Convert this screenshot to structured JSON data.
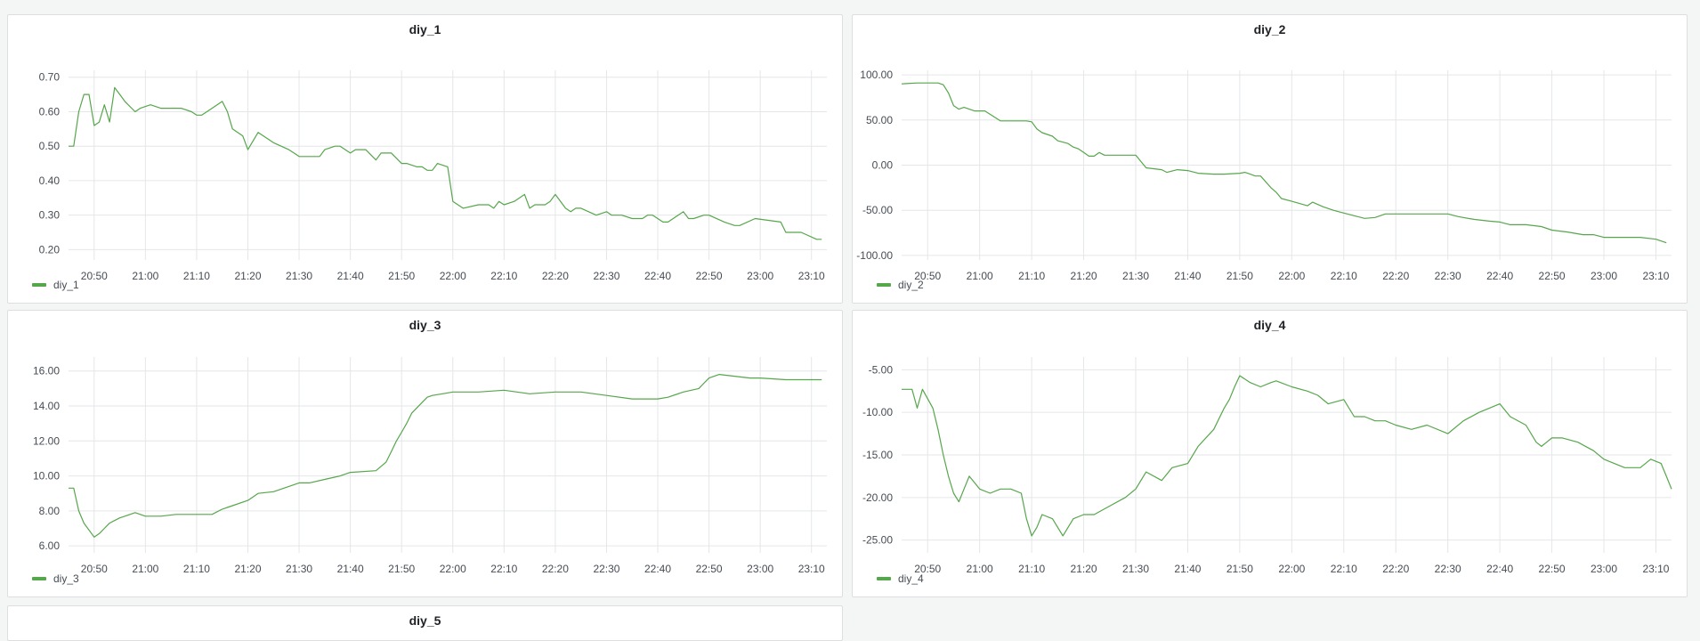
{
  "colors": {
    "series": "#56a64b",
    "grid": "#e4e6e9",
    "text": "#464c54"
  },
  "bottom_panel": {
    "title": "diy_5"
  },
  "chart_data": [
    {
      "type": "line",
      "title": "diy_1",
      "xlabel": "",
      "ylabel": "",
      "legend": "bottom-left",
      "grid": true,
      "xlim": [
        "20:45",
        "23:13"
      ],
      "ylim": [
        0.17,
        0.72
      ],
      "xticks": [
        "20:50",
        "21:00",
        "21:10",
        "21:20",
        "21:30",
        "21:40",
        "21:50",
        "22:00",
        "22:10",
        "22:20",
        "22:30",
        "22:40",
        "22:50",
        "23:00",
        "23:10"
      ],
      "yticks": [
        0.2,
        0.3,
        0.4,
        0.5,
        0.6,
        0.7
      ],
      "ytick_labels": [
        "0.20",
        "0.30",
        "0.40",
        "0.50",
        "0.60",
        "0.70"
      ],
      "series": [
        {
          "name": "diy_1",
          "x": [
            "20:45",
            "20:46",
            "20:47",
            "20:48",
            "20:49",
            "20:50",
            "20:51",
            "20:52",
            "20:53",
            "20:54",
            "20:55",
            "20:56",
            "20:58",
            "20:59",
            "21:01",
            "21:03",
            "21:05",
            "21:07",
            "21:09",
            "21:10",
            "21:11",
            "21:12",
            "21:13",
            "21:15",
            "21:16",
            "21:17",
            "21:18",
            "21:19",
            "21:20",
            "21:22",
            "21:25",
            "21:28",
            "21:29",
            "21:30",
            "21:32",
            "21:34",
            "21:35",
            "21:37",
            "21:38",
            "21:40",
            "21:41",
            "21:43",
            "21:45",
            "21:46",
            "21:48",
            "21:50",
            "21:51",
            "21:53",
            "21:54",
            "21:55",
            "21:56",
            "21:57",
            "21:59",
            "22:00",
            "22:02",
            "22:05",
            "22:07",
            "22:08",
            "22:09",
            "22:10",
            "22:12",
            "22:14",
            "22:15",
            "22:16",
            "22:18",
            "22:19",
            "22:20",
            "22:22",
            "22:23",
            "22:24",
            "22:25",
            "22:28",
            "22:30",
            "22:31",
            "22:33",
            "22:35",
            "22:37",
            "22:38",
            "22:39",
            "22:41",
            "22:42",
            "22:43",
            "22:45",
            "22:46",
            "22:47",
            "22:49",
            "22:50",
            "22:53",
            "22:55",
            "22:56",
            "22:59",
            "23:04",
            "23:05",
            "23:06",
            "23:08",
            "23:11",
            "23:12"
          ],
          "y": [
            0.5,
            0.5,
            0.6,
            0.65,
            0.65,
            0.56,
            0.57,
            0.62,
            0.57,
            0.67,
            0.65,
            0.63,
            0.6,
            0.61,
            0.62,
            0.61,
            0.61,
            0.61,
            0.6,
            0.59,
            0.59,
            0.6,
            0.61,
            0.63,
            0.6,
            0.55,
            0.54,
            0.53,
            0.49,
            0.54,
            0.51,
            0.49,
            0.48,
            0.47,
            0.47,
            0.47,
            0.49,
            0.5,
            0.5,
            0.48,
            0.49,
            0.49,
            0.46,
            0.48,
            0.48,
            0.45,
            0.45,
            0.44,
            0.44,
            0.43,
            0.43,
            0.45,
            0.44,
            0.34,
            0.32,
            0.33,
            0.33,
            0.32,
            0.34,
            0.33,
            0.34,
            0.36,
            0.32,
            0.33,
            0.33,
            0.34,
            0.36,
            0.32,
            0.31,
            0.32,
            0.32,
            0.3,
            0.31,
            0.3,
            0.3,
            0.29,
            0.29,
            0.3,
            0.3,
            0.28,
            0.28,
            0.29,
            0.31,
            0.29,
            0.29,
            0.3,
            0.3,
            0.28,
            0.27,
            0.27,
            0.29,
            0.28,
            0.25,
            0.25,
            0.25,
            0.23,
            0.23
          ]
        }
      ]
    },
    {
      "type": "line",
      "title": "diy_2",
      "xlabel": "",
      "ylabel": "",
      "legend": "bottom-left",
      "grid": true,
      "xlim": [
        "20:45",
        "23:13"
      ],
      "ylim": [
        -105,
        105
      ],
      "xticks": [
        "20:50",
        "21:00",
        "21:10",
        "21:20",
        "21:30",
        "21:40",
        "21:50",
        "22:00",
        "22:10",
        "22:20",
        "22:30",
        "22:40",
        "22:50",
        "23:00",
        "23:10"
      ],
      "yticks": [
        -100,
        -50,
        0,
        50,
        100
      ],
      "ytick_labels": [
        "-100.00",
        "-50.00",
        "0.00",
        "50.00",
        "100.00"
      ],
      "series": [
        {
          "name": "diy_2",
          "x": [
            "20:45",
            "20:48",
            "20:52",
            "20:53",
            "20:54",
            "20:55",
            "20:56",
            "20:57",
            "20:59",
            "21:01",
            "21:04",
            "21:09",
            "21:10",
            "21:11",
            "21:12",
            "21:14",
            "21:15",
            "21:17",
            "21:18",
            "21:19",
            "21:20",
            "21:21",
            "21:22",
            "21:23",
            "21:24",
            "21:30",
            "21:32",
            "21:35",
            "21:36",
            "21:38",
            "21:40",
            "21:42",
            "21:45",
            "21:47",
            "21:50",
            "21:51",
            "21:52",
            "21:53",
            "21:54",
            "21:56",
            "21:57",
            "21:58",
            "22:00",
            "22:03",
            "22:04",
            "22:06",
            "22:08",
            "22:10",
            "22:12",
            "22:14",
            "22:16",
            "22:18",
            "22:20",
            "22:24",
            "22:26",
            "22:30",
            "22:32",
            "22:35",
            "22:38",
            "22:40",
            "22:42",
            "22:45",
            "22:48",
            "22:50",
            "22:53",
            "22:56",
            "22:58",
            "23:00",
            "23:05",
            "23:07",
            "23:10",
            "23:12"
          ],
          "y": [
            90,
            91,
            91,
            89,
            80,
            66,
            62,
            64,
            60,
            60,
            49,
            49,
            48,
            40,
            36,
            32,
            27,
            24,
            20,
            18,
            14,
            10,
            10,
            14,
            11,
            11,
            -3,
            -5,
            -8,
            -5,
            -6,
            -9,
            -10,
            -10,
            -9,
            -8,
            -10,
            -12,
            -12,
            -25,
            -30,
            -37,
            -40,
            -45,
            -41,
            -46,
            -50,
            -53,
            -56,
            -59,
            -58,
            -54,
            -54,
            -54,
            -54,
            -54,
            -57,
            -60,
            -62,
            -63,
            -66,
            -66,
            -68,
            -72,
            -74,
            -77,
            -77,
            -80,
            -80,
            -80,
            -82,
            -86
          ]
        }
      ]
    },
    {
      "type": "line",
      "title": "diy_3",
      "xlabel": "",
      "ylabel": "",
      "legend": "bottom-left",
      "grid": true,
      "xlim": [
        "20:45",
        "23:13"
      ],
      "ylim": [
        5.6,
        16.8
      ],
      "xticks": [
        "20:50",
        "21:00",
        "21:10",
        "21:20",
        "21:30",
        "21:40",
        "21:50",
        "22:00",
        "22:10",
        "22:20",
        "22:30",
        "22:40",
        "22:50",
        "23:00",
        "23:10"
      ],
      "yticks": [
        6,
        8,
        10,
        12,
        14,
        16
      ],
      "ytick_labels": [
        "6.00",
        "8.00",
        "10.00",
        "12.00",
        "14.00",
        "16.00"
      ],
      "series": [
        {
          "name": "diy_3",
          "x": [
            "20:45",
            "20:46",
            "20:47",
            "20:48",
            "20:50",
            "20:51",
            "20:52",
            "20:53",
            "20:55",
            "20:56",
            "20:58",
            "21:00",
            "21:03",
            "21:06",
            "21:10",
            "21:13",
            "21:15",
            "21:17",
            "21:20",
            "21:22",
            "21:25",
            "21:28",
            "21:30",
            "21:32",
            "21:35",
            "21:38",
            "21:40",
            "21:45",
            "21:47",
            "21:48",
            "21:49",
            "21:50",
            "21:51",
            "21:52",
            "21:54",
            "21:55",
            "21:56",
            "21:58",
            "22:00",
            "22:05",
            "22:10",
            "22:15",
            "22:20",
            "22:25",
            "22:30",
            "22:35",
            "22:40",
            "22:42",
            "22:45",
            "22:48",
            "22:49",
            "22:50",
            "22:52",
            "22:55",
            "22:58",
            "23:00",
            "23:05",
            "23:10",
            "23:12"
          ],
          "y": [
            9.3,
            9.3,
            8.0,
            7.3,
            6.5,
            6.7,
            7.0,
            7.3,
            7.6,
            7.7,
            7.9,
            7.7,
            7.7,
            7.8,
            7.8,
            7.8,
            8.1,
            8.3,
            8.6,
            9.0,
            9.1,
            9.4,
            9.6,
            9.6,
            9.8,
            10.0,
            10.2,
            10.3,
            10.8,
            11.4,
            12.0,
            12.5,
            13.0,
            13.6,
            14.2,
            14.5,
            14.6,
            14.7,
            14.8,
            14.8,
            14.9,
            14.7,
            14.8,
            14.8,
            14.6,
            14.4,
            14.4,
            14.5,
            14.8,
            15.0,
            15.3,
            15.6,
            15.8,
            15.7,
            15.6,
            15.6,
            15.5,
            15.5,
            15.5
          ]
        }
      ]
    },
    {
      "type": "line",
      "title": "diy_4",
      "xlabel": "",
      "ylabel": "",
      "legend": "bottom-left",
      "grid": true,
      "xlim": [
        "20:45",
        "23:13"
      ],
      "ylim": [
        -26.5,
        -3.5
      ],
      "xticks": [
        "20:50",
        "21:00",
        "21:10",
        "21:20",
        "21:30",
        "21:40",
        "21:50",
        "22:00",
        "22:10",
        "22:20",
        "22:30",
        "22:40",
        "22:50",
        "23:00",
        "23:10"
      ],
      "yticks": [
        -25,
        -20,
        -15,
        -10,
        -5
      ],
      "ytick_labels": [
        "-25.00",
        "-20.00",
        "-15.00",
        "-10.00",
        "-5.00"
      ],
      "series": [
        {
          "name": "diy_4",
          "x": [
            "20:45",
            "20:47",
            "20:48",
            "20:49",
            "20:51",
            "20:52",
            "20:53",
            "20:54",
            "20:55",
            "20:56",
            "20:57",
            "20:58",
            "21:00",
            "21:02",
            "21:04",
            "21:06",
            "21:08",
            "21:09",
            "21:10",
            "21:11",
            "21:12",
            "21:14",
            "21:16",
            "21:18",
            "21:20",
            "21:22",
            "21:25",
            "21:28",
            "21:30",
            "21:32",
            "21:35",
            "21:37",
            "21:40",
            "21:42",
            "21:45",
            "21:47",
            "21:48",
            "21:49",
            "21:50",
            "21:52",
            "21:54",
            "21:56",
            "21:57",
            "22:00",
            "22:03",
            "22:05",
            "22:07",
            "22:10",
            "22:12",
            "22:14",
            "22:16",
            "22:18",
            "22:20",
            "22:23",
            "22:26",
            "22:30",
            "22:33",
            "22:36",
            "22:38",
            "22:40",
            "22:42",
            "22:45",
            "22:47",
            "22:48",
            "22:49",
            "22:50",
            "22:52",
            "22:55",
            "22:58",
            "23:00",
            "23:04",
            "23:07",
            "23:09",
            "23:11",
            "23:12",
            "23:13"
          ],
          "y": [
            -7.3,
            -7.3,
            -9.5,
            -7.3,
            -9.5,
            -12.0,
            -15.0,
            -17.5,
            -19.5,
            -20.5,
            -19.0,
            -17.5,
            -19.0,
            -19.5,
            -19.0,
            -19.0,
            -19.5,
            -22.5,
            -24.5,
            -23.5,
            -22.0,
            -22.5,
            -24.5,
            -22.5,
            -22.0,
            -22.0,
            -21.0,
            -20.0,
            -19.0,
            -17.0,
            -18.0,
            -16.5,
            -16.0,
            -14.0,
            -12.0,
            -9.5,
            -8.5,
            -7.0,
            -5.7,
            -6.5,
            -7.0,
            -6.5,
            -6.3,
            -7.0,
            -7.5,
            -8.0,
            -9.0,
            -8.5,
            -10.5,
            -10.5,
            -11.0,
            -11.0,
            -11.5,
            -12.0,
            -11.5,
            -12.5,
            -11.0,
            -10.0,
            -9.5,
            -9.0,
            -10.5,
            -11.5,
            -13.5,
            -14.0,
            -13.5,
            -13.0,
            -13.0,
            -13.5,
            -14.5,
            -15.5,
            -16.5,
            -16.5,
            -15.5,
            -16.0,
            -17.5,
            -19.0
          ]
        }
      ]
    }
  ]
}
